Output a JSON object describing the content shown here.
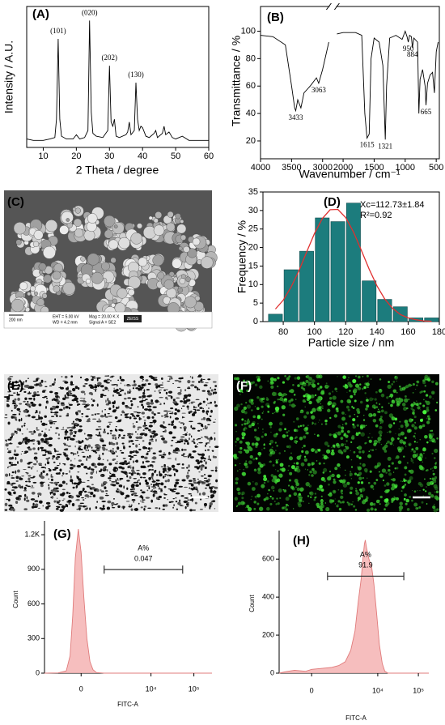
{
  "chart_data": [
    {
      "type": "line",
      "label": "(A)",
      "xlabel": "2 Theta / degree",
      "ylabel": "Intensity / A.U.",
      "x": [
        5,
        7,
        10,
        12,
        13.5,
        14,
        14.5,
        15,
        15.5,
        17,
        19,
        20,
        21,
        22.5,
        23.5,
        24,
        24.5,
        25,
        26,
        28,
        29.5,
        30,
        30.5,
        31,
        31.5,
        32,
        33,
        35,
        35.5,
        36,
        36.5,
        37.5,
        38,
        38.5,
        39,
        39.5,
        40,
        41,
        42,
        43.5,
        44,
        44.5,
        46,
        46.5,
        47,
        48,
        49,
        50,
        52,
        54,
        56,
        58,
        60
      ],
      "series": [
        {
          "color": "#000000",
          "values": [
            6,
            5,
            5,
            6,
            7,
            20,
            77,
            20,
            8,
            6,
            6,
            9,
            6,
            7,
            12,
            90,
            25,
            10,
            8,
            7,
            12,
            58,
            18,
            15,
            20,
            8,
            7,
            9,
            11,
            18,
            9,
            12,
            46,
            20,
            12,
            15,
            14,
            8,
            7,
            10,
            12,
            7,
            10,
            15,
            9,
            11,
            7,
            6,
            8,
            5,
            5,
            5,
            5
          ]
        }
      ],
      "xlim": [
        5,
        60
      ],
      "xticks": [
        10,
        20,
        30,
        40,
        50,
        60
      ],
      "ylim": [
        0,
        100
      ],
      "annotations": [
        {
          "x": 14.5,
          "text": "(101)"
        },
        {
          "x": 24,
          "text": "(020)"
        },
        {
          "x": 30,
          "text": "(202)"
        },
        {
          "x": 38,
          "text": "(130)"
        }
      ]
    },
    {
      "type": "line",
      "label": "(B)",
      "xlabel": "Wavenumber / cm⁻¹",
      "ylabel": "Transmittance / %",
      "x": [
        4000,
        3800,
        3600,
        3500,
        3450,
        3433,
        3400,
        3350,
        3300,
        3200,
        3100,
        3063,
        3000,
        2900,
        2500,
        2100,
        2000,
        1800,
        1700,
        1650,
        1615,
        1580,
        1550,
        1500,
        1420,
        1360,
        1321,
        1300,
        1250,
        1150,
        1050,
        1000,
        970,
        950,
        930,
        900,
        884,
        860,
        800,
        780,
        760,
        720,
        680,
        665,
        640,
        600,
        560,
        530,
        500,
        470
      ],
      "series": [
        {
          "color": "#000000",
          "values": [
            97,
            96,
            90,
            60,
            44,
            42,
            50,
            44,
            55,
            60,
            66,
            62,
            72,
            92,
            null,
            98,
            99,
            99,
            97,
            40,
            22,
            25,
            80,
            95,
            92,
            75,
            21,
            60,
            95,
            97,
            94,
            100,
            96,
            92,
            97,
            96,
            88,
            95,
            92,
            40,
            65,
            72,
            60,
            46,
            62,
            68,
            70,
            55,
            85,
            92
          ]
        }
      ],
      "xlim": [
        4000,
        450
      ],
      "x_break": [
        2900,
        2100
      ],
      "xticks": [
        4000,
        3500,
        3000,
        2000,
        1500,
        1000,
        500
      ],
      "ylim": [
        7,
        118
      ],
      "yticks": [
        20,
        40,
        60,
        80,
        100
      ],
      "peak_labels": [
        3433,
        3063,
        1615,
        1321,
        950,
        884,
        665
      ]
    },
    {
      "type": "histogram",
      "label": "(D)",
      "xlabel": "Particle size / nm",
      "ylabel": "Frequency / %",
      "bins": [
        70,
        80,
        90,
        100,
        110,
        120,
        130,
        140,
        150,
        160,
        170,
        180
      ],
      "values": [
        2,
        14,
        19,
        28,
        27,
        32,
        11,
        6,
        4,
        1,
        1
      ],
      "color": "#1c7c7d",
      "fit": {
        "color": "#e0302f",
        "x": [
          75,
          80,
          85,
          90,
          95,
          100,
          105,
          110,
          115,
          120,
          125,
          130,
          135,
          140,
          145,
          150,
          155,
          160,
          165,
          170,
          175
        ],
        "values": [
          3.4,
          5.8,
          9.3,
          13.7,
          18.8,
          23.8,
          27.8,
          30.2,
          30.3,
          28.1,
          24.2,
          19.3,
          14.2,
          9.7,
          6.1,
          3.6,
          1.9,
          1.0,
          0.5,
          0.2,
          0.1
        ]
      },
      "notes": [
        "Xc=112.73±1.84",
        "R²=0.92"
      ],
      "xlim": [
        67,
        180
      ],
      "xticks": [
        80,
        100,
        120,
        140,
        160,
        180
      ],
      "ylim": [
        0,
        35
      ],
      "yticks": [
        0,
        5,
        10,
        15,
        20,
        25,
        30,
        35
      ]
    },
    {
      "type": "area",
      "label": "(G)",
      "xlabel": "FITC-A",
      "ylabel": "Count",
      "xscale": "biexponential",
      "x": [
        -1500,
        -600,
        -300,
        -200,
        -140,
        -90,
        -40,
        0,
        40,
        90,
        150,
        220,
        320,
        600,
        262144
      ],
      "series": [
        {
          "color": "#f4b3b3",
          "values": [
            0,
            2,
            20,
            150,
            500,
            1000,
            1250,
            1050,
            650,
            300,
            100,
            30,
            5,
            0,
            0
          ]
        }
      ],
      "gate": {
        "name": "A%",
        "value": 0.047,
        "x": [
          600,
          55000
        ]
      },
      "xlim": [
        -1500,
        262144
      ],
      "xticks": [
        0,
        {
          "value": 10000,
          "label": "10⁴"
        },
        {
          "value": 100000,
          "label": "10⁵"
        }
      ],
      "ylim": [
        0,
        1320
      ],
      "yticks": [
        0,
        300,
        600,
        900,
        {
          "value": 1200,
          "label": "1.2K"
        }
      ]
    },
    {
      "type": "area",
      "label": "(H)",
      "xlabel": "FITC-A",
      "ylabel": "Count",
      "xscale": "biexponential",
      "x": [
        -1300,
        -800,
        -400,
        -100,
        0,
        200,
        500,
        900,
        1400,
        2000,
        2600,
        3200,
        3800,
        4200,
        4600,
        4850,
        5200,
        6000,
        7000,
        8000,
        9500,
        11000,
        13000,
        15000,
        18000,
        180000
      ],
      "series": [
        {
          "color": "#f4b3b3",
          "values": [
            0,
            8,
            15,
            10,
            20,
            25,
            30,
            40,
            60,
            120,
            220,
            380,
            500,
            600,
            680,
            700,
            660,
            600,
            560,
            470,
            300,
            150,
            50,
            10,
            0,
            0
          ]
        }
      ],
      "gate": {
        "name": "A%",
        "value": 91.9,
        "x": [
          360,
          44000
        ]
      },
      "xlim": [
        -1300,
        180000
      ],
      "xticks": [
        0,
        {
          "value": 10000,
          "label": "10⁴"
        },
        {
          "value": 100000,
          "label": "10⁵"
        }
      ],
      "ylim": [
        0,
        750
      ],
      "yticks": [
        0,
        200,
        400,
        600
      ]
    }
  ],
  "images": [
    {
      "label": "(C)",
      "scale_bar": "200 nm",
      "info": [
        "EHT = 5.00 kV",
        "WD = 4.2 mm",
        "Mag = 20.00 K X",
        "Signal A = SE2"
      ],
      "logo": "ZEISS"
    },
    {
      "label": "(E)"
    },
    {
      "label": "(F)"
    }
  ]
}
